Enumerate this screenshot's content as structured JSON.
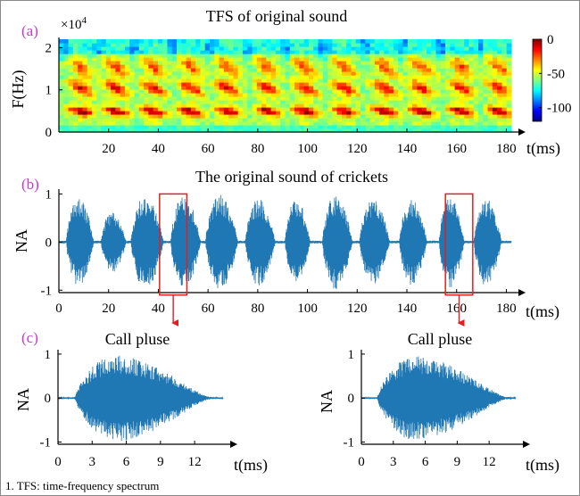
{
  "chart_data": [
    {
      "id": "a",
      "panel_label": "(a)",
      "type": "heatmap",
      "title": "TFS of original sound",
      "xlabel": "t(ms)",
      "ylabel": "F(Hz)",
      "y_multiplier": "×10",
      "y_multiplier_exp": "4",
      "xlim": [
        0,
        182
      ],
      "ylim": [
        0,
        2.2
      ],
      "xticks": [
        20,
        40,
        60,
        80,
        100,
        120,
        140,
        160,
        180
      ],
      "yticks": [
        0,
        1,
        2
      ],
      "colorbar": {
        "ticks": [
          0,
          -50,
          -100
        ],
        "range": [
          -120,
          0
        ],
        "colors": [
          "#00007f",
          "#0000ff",
          "#0080ff",
          "#00ffff",
          "#80ff80",
          "#ffff00",
          "#ff8000",
          "#ff0000",
          "#7f0000"
        ]
      },
      "pulse_times_ms": [
        9,
        23,
        38,
        53,
        68,
        84,
        99,
        115,
        131,
        146,
        162,
        177
      ],
      "harmonic_bands_khz": [
        0.5,
        1.05,
        1.55
      ],
      "grid": false
    },
    {
      "id": "b",
      "panel_label": "(b)",
      "type": "line",
      "title": "The original sound of crickets",
      "xlabel": "t(ms)",
      "ylabel": "NA",
      "xlim": [
        0,
        182
      ],
      "ylim": [
        -1.05,
        1.1
      ],
      "xticks": [
        0,
        20,
        40,
        60,
        80,
        100,
        120,
        140,
        160,
        180
      ],
      "yticks": [
        1,
        0,
        -1
      ],
      "line_color": "#1f77b4",
      "pulses": [
        {
          "start": 3,
          "end": 14,
          "peak": 0.92
        },
        {
          "start": 17,
          "end": 27,
          "peak": 0.62
        },
        {
          "start": 29,
          "end": 42,
          "peak": 0.98
        },
        {
          "start": 45,
          "end": 57,
          "peak": 0.98
        },
        {
          "start": 59,
          "end": 72,
          "peak": 0.98
        },
        {
          "start": 75,
          "end": 87,
          "peak": 0.9
        },
        {
          "start": 91,
          "end": 101,
          "peak": 0.89
        },
        {
          "start": 106,
          "end": 118,
          "peak": 0.98
        },
        {
          "start": 121,
          "end": 133,
          "peak": 0.88
        },
        {
          "start": 137,
          "end": 148,
          "peak": 0.9
        },
        {
          "start": 153,
          "end": 163,
          "peak": 0.95
        },
        {
          "start": 167,
          "end": 178,
          "peak": 0.9
        }
      ],
      "highlight_boxes": [
        {
          "x0": 40.5,
          "x1": 51.5,
          "y0": -1.1,
          "y1": 1.0
        },
        {
          "x0": 155.5,
          "x1": 166.5,
          "y0": -1.1,
          "y1": 1.0
        }
      ],
      "highlight_color": "#e02020",
      "grid": false
    },
    {
      "id": "c1",
      "panel_label": "(c)",
      "type": "line",
      "title": "Call pluse",
      "xlabel": "t(ms)",
      "ylabel": "NA",
      "xlim": [
        0,
        14.5
      ],
      "ylim": [
        -1.05,
        1.1
      ],
      "xticks": [
        0,
        3,
        6,
        9,
        12
      ],
      "yticks": [
        1,
        0,
        -1
      ],
      "line_color": "#1f77b4",
      "pulse": {
        "start": 1.5,
        "end": 13.5,
        "peak_time": 5,
        "peak": 0.97
      },
      "grid": false
    },
    {
      "id": "c2",
      "type": "line",
      "title": "Call pluse",
      "xlabel": "t(ms)",
      "ylabel": "NA",
      "xlim": [
        0,
        14.5
      ],
      "ylim": [
        -1.05,
        1.1
      ],
      "xticks": [
        0,
        3,
        6,
        9,
        12
      ],
      "yticks": [
        1,
        0,
        -1
      ],
      "line_color": "#1f77b4",
      "pulse": {
        "start": 1.5,
        "end": 13.8,
        "peak_time": 5,
        "peak": 0.95
      },
      "grid": false
    }
  ],
  "footnote": "1. TFS:  time-frequency spectrum"
}
